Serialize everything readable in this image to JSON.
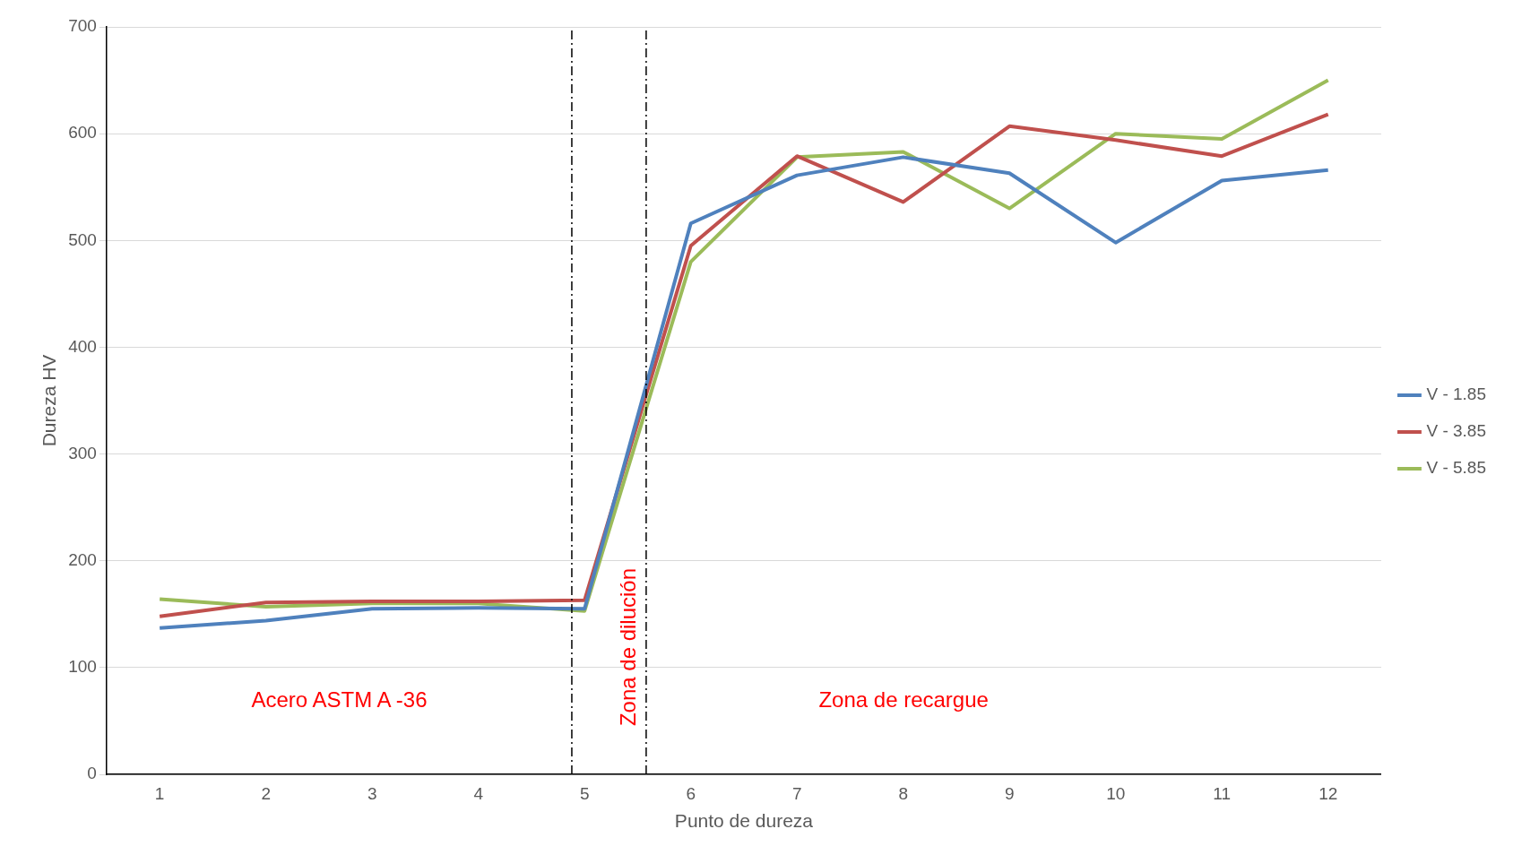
{
  "chart_data": {
    "type": "line",
    "xlabel": "Punto de dureza",
    "ylabel": "Dureza HV",
    "x": [
      1,
      2,
      3,
      4,
      5,
      6,
      7,
      8,
      9,
      10,
      11,
      12
    ],
    "xlim": [
      0.5,
      12.5
    ],
    "xticks": [
      1,
      2,
      3,
      4,
      5,
      6,
      7,
      8,
      9,
      10,
      11,
      12
    ],
    "ylim": [
      0,
      700
    ],
    "yticks": [
      0,
      100,
      200,
      300,
      400,
      500,
      600,
      700
    ],
    "series": [
      {
        "name": "V - 1.85",
        "color": "#4f81bd",
        "values": [
          137,
          144,
          155,
          156,
          155,
          516,
          561,
          578,
          563,
          498,
          556,
          566
        ]
      },
      {
        "name": "V - 3.85",
        "color": "#c0504d",
        "values": [
          148,
          161,
          162,
          162,
          163,
          495,
          579,
          536,
          607,
          594,
          579,
          618
        ]
      },
      {
        "name": "V - 5.85",
        "color": "#9bbb59",
        "values": [
          164,
          157,
          160,
          160,
          153,
          480,
          578,
          583,
          530,
          600,
          595,
          650
        ]
      }
    ],
    "ref_lines": [
      {
        "axis": "x",
        "value": 4.88,
        "label": null,
        "color": "#000000",
        "line_style": "dashed"
      },
      {
        "axis": "x",
        "value": 5.58,
        "label": null,
        "color": "#000000",
        "line_style": "dashed"
      }
    ],
    "annotations": [
      "Acero ASTM A -36",
      "Zona de dilución",
      "Zona de recargue"
    ],
    "grid": "y",
    "legend": "right",
    "marker": "none",
    "line_style": "solid"
  }
}
